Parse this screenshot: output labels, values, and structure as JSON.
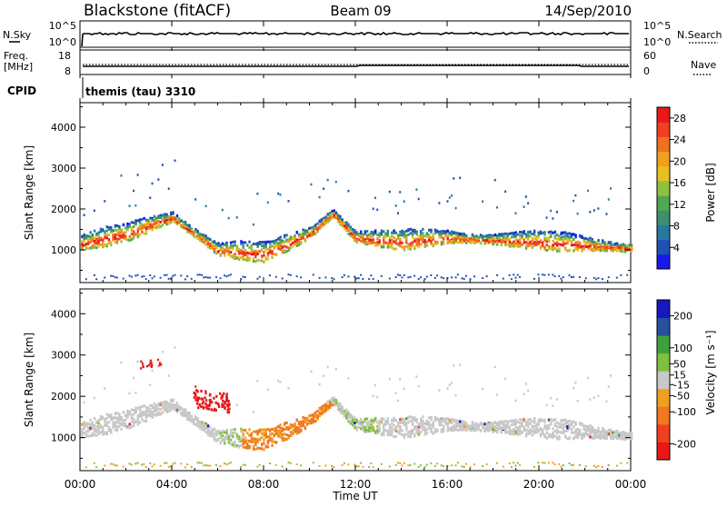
{
  "header": {
    "station": "Blackstone (fitACF)",
    "beam": "Beam 09",
    "date": "14/Sep/2010"
  },
  "top_panels": {
    "nsky_label": "N.Sky",
    "nsky_ticks": [
      "10^5",
      "10^0"
    ],
    "nsearch_label": "N.Search",
    "nsearch_ticks": [
      "10^5",
      "10^0"
    ],
    "freq_label": "Freq.",
    "freq_unit": "[MHz]",
    "freq_ticks": [
      "18",
      "8"
    ],
    "nave_label": "Nave",
    "nave_ticks": [
      "60",
      "0"
    ],
    "cpid_label": "CPID",
    "cpid_text": "themis (tau) 3310"
  },
  "x_axis": {
    "label": "Time UT",
    "ticks": [
      "00:00",
      "04:00",
      "08:00",
      "12:00",
      "16:00",
      "20:00",
      "00:00"
    ]
  },
  "chart_data": [
    {
      "type": "heatmap",
      "ylabel": "Slant Range [km]",
      "yticks": [
        "4000",
        "3000",
        "2000",
        "1000"
      ],
      "ylim": [
        200,
        4600
      ],
      "xlim_hours": [
        0,
        24
      ],
      "colorbar": {
        "label": "Power [dB]",
        "ticks": [
          "28",
          "24",
          "20",
          "16",
          "12",
          "8",
          "4"
        ],
        "range": [
          0,
          30
        ],
        "colors": [
          "#1818f0",
          "#2050b0",
          "#2878a0",
          "#3c9070",
          "#50a850",
          "#90c040",
          "#e8c020",
          "#f0a020",
          "#f07020",
          "#f04020",
          "#e81818"
        ]
      },
      "scatter_bands": [
        {
          "desc": "main ionospheric band",
          "range_profile_km": [
            [
              0,
              1150
            ],
            [
              2,
              1400
            ],
            [
              4,
              1800
            ],
            [
              6,
              1000
            ],
            [
              8,
              900
            ],
            [
              10,
              1400
            ],
            [
              11,
              1900
            ],
            [
              12,
              1300
            ],
            [
              14,
              1200
            ],
            [
              16,
              1300
            ],
            [
              18,
              1250
            ],
            [
              20,
              1200
            ],
            [
              24,
              1050
            ]
          ],
          "dominant_power_db": 20
        }
      ]
    },
    {
      "type": "heatmap",
      "ylabel": "Slant Range [km]",
      "yticks": [
        "4000",
        "3000",
        "2000",
        "1000"
      ],
      "ylim": [
        200,
        4600
      ],
      "xlim_hours": [
        0,
        24
      ],
      "colorbar": {
        "label": "Velocity [m s⁻¹]",
        "ticks": [
          "200",
          "100",
          "50",
          "15",
          "-15",
          "-50",
          "-100",
          "-200"
        ],
        "range": [
          -250,
          250
        ],
        "colors": [
          "#e81818",
          "#f04020",
          "#f07820",
          "#f0a020",
          "#c8c8c8",
          "#80c040",
          "#40a040",
          "#2850a0",
          "#1818c0"
        ]
      },
      "scatter_bands": [
        {
          "desc": "ground scatter gray band",
          "velocity_ms": 0
        },
        {
          "desc": "red patch near 05:00-06:30 at 1700-2200 km",
          "velocity_ms": -200
        },
        {
          "desc": "orange patch 07:00-11:00 at 800-1800 km",
          "velocity_ms": -80
        }
      ]
    }
  ]
}
